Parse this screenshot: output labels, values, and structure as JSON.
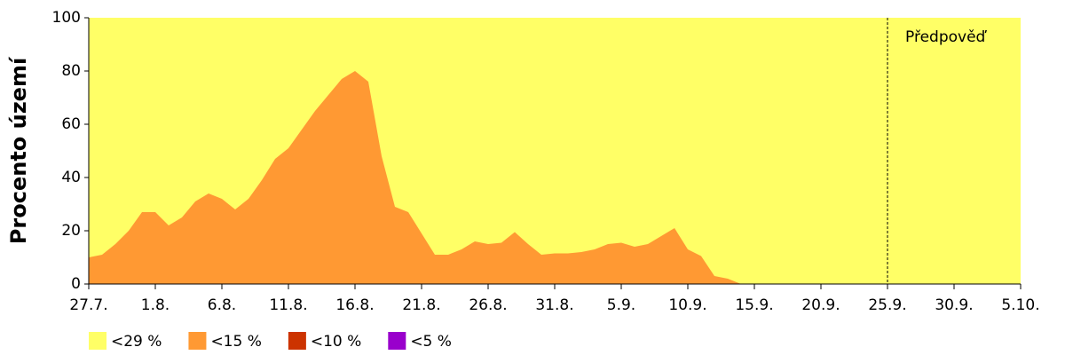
{
  "chart_data": {
    "type": "area",
    "y_label": "Procento území",
    "categories": [
      "27.7.",
      null,
      null,
      null,
      null,
      "1.8.",
      null,
      null,
      null,
      null,
      "6.8.",
      null,
      null,
      null,
      null,
      "11.8.",
      null,
      null,
      null,
      null,
      "16.8.",
      null,
      null,
      null,
      null,
      "21.8.",
      null,
      null,
      null,
      null,
      "26.8.",
      null,
      null,
      null,
      null,
      "31.8.",
      null,
      null,
      null,
      null,
      "5.9.",
      null,
      null,
      null,
      null,
      "10.9.",
      null,
      null,
      null,
      null,
      "15.9.",
      null,
      null,
      null,
      null,
      "20.9.",
      null,
      null,
      null,
      null,
      "25.9.",
      null,
      null,
      null,
      null,
      "30.9.",
      null,
      null,
      null,
      null,
      "5.10."
    ],
    "series": [
      {
        "name": "<29 %",
        "color": "#ffff66",
        "values": [
          100,
          100,
          100,
          100,
          100,
          100,
          100,
          100,
          100,
          100,
          100,
          100,
          100,
          100,
          100,
          100,
          100,
          100,
          100,
          100,
          100,
          100,
          100,
          100,
          100,
          100,
          100,
          100,
          100,
          100,
          100,
          100,
          100,
          100,
          100,
          100,
          100,
          100,
          100,
          100,
          100,
          100,
          100,
          100,
          100,
          100,
          100,
          100,
          100,
          100,
          100,
          100,
          100,
          100,
          100,
          100,
          100,
          100,
          100,
          100,
          100,
          100,
          100,
          100,
          100,
          100,
          100,
          100,
          100,
          100,
          100
        ]
      },
      {
        "name": "<15 %",
        "color": "#ff9933",
        "values": [
          10,
          11,
          15,
          20,
          27,
          27,
          22,
          25,
          31,
          34,
          32,
          28,
          32,
          39,
          47,
          51,
          58,
          65,
          71,
          77,
          80,
          76,
          48,
          29,
          27,
          19,
          11,
          11,
          13,
          16,
          15,
          15.5,
          19.5,
          15,
          11,
          11.5,
          11.5,
          12,
          13,
          15,
          15.5,
          14,
          15,
          18,
          21,
          13,
          10.5,
          3,
          2,
          0,
          0,
          0,
          0,
          0,
          0,
          0,
          0,
          0,
          0,
          0,
          0,
          0,
          0,
          0,
          0,
          0,
          0,
          0,
          0,
          0,
          0
        ]
      },
      {
        "name": "<10 %",
        "color": "#cc3300",
        "values": [
          0,
          0,
          0,
          0,
          0,
          0,
          0,
          0,
          0,
          0,
          0,
          0,
          0,
          0,
          0,
          0,
          0,
          0,
          0,
          0,
          0,
          0,
          0,
          0,
          0,
          0,
          0,
          0,
          0,
          0,
          0,
          0,
          0,
          0,
          0,
          0,
          0,
          0,
          0,
          0,
          0,
          0,
          0,
          0,
          0,
          0,
          0,
          0,
          0,
          0,
          0,
          0,
          0,
          0,
          0,
          0,
          0,
          0,
          0,
          0,
          0,
          0,
          0,
          0,
          0,
          0,
          0,
          0,
          0,
          0,
          0
        ]
      },
      {
        "name": "<5 %",
        "color": "#9900cc",
        "values": [
          0,
          0,
          0,
          0,
          0,
          0,
          0,
          0,
          0,
          0,
          0,
          0,
          0,
          0,
          0,
          0,
          0,
          0,
          0,
          0,
          0,
          0,
          0,
          0,
          0,
          0,
          0,
          0,
          0,
          0,
          0,
          0,
          0,
          0,
          0,
          0,
          0,
          0,
          0,
          0,
          0,
          0,
          0,
          0,
          0,
          0,
          0,
          0,
          0,
          0,
          0,
          0,
          0,
          0,
          0,
          0,
          0,
          0,
          0,
          0,
          0,
          0,
          0,
          0,
          0,
          0,
          0,
          0,
          0,
          0,
          0
        ]
      }
    ],
    "ylim": [
      0,
      100
    ],
    "yticks": [
      0,
      20,
      40,
      60,
      80,
      100
    ],
    "annotations": [
      {
        "label": "Předpověď",
        "at": "25.9."
      }
    ]
  }
}
